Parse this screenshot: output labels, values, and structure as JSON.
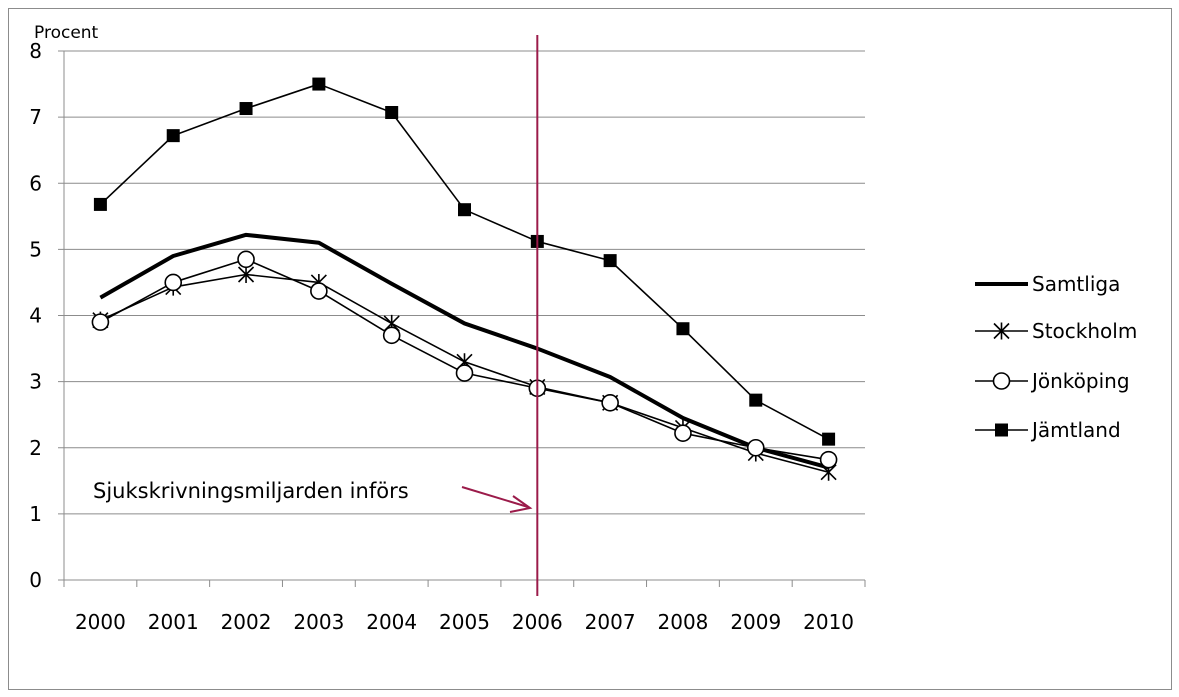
{
  "chart_data": {
    "type": "line",
    "ylabel": "Procent",
    "ylim": [
      0,
      8
    ],
    "yticks": [
      "0",
      "1",
      "2",
      "3",
      "4",
      "5",
      "6",
      "7",
      "8"
    ],
    "categories": [
      "2000",
      "2001",
      "2002",
      "2003",
      "2004",
      "2005",
      "2006",
      "2007",
      "2008",
      "2009",
      "2010"
    ],
    "grid": "horizontal",
    "legend_position": "right",
    "series": [
      {
        "name": "Samtliga",
        "marker": "none",
        "values": [
          4.27,
          4.9,
          5.22,
          5.1,
          4.48,
          3.88,
          3.5,
          3.07,
          2.45,
          2.0,
          1.7
        ]
      },
      {
        "name": "Stockholm",
        "marker": "star",
        "values": [
          3.93,
          4.43,
          4.62,
          4.5,
          3.88,
          3.3,
          2.92,
          2.68,
          2.3,
          1.92,
          1.63
        ]
      },
      {
        "name": "Jönköping",
        "marker": "circle",
        "values": [
          3.9,
          4.5,
          4.85,
          4.37,
          3.7,
          3.13,
          2.9,
          2.68,
          2.22,
          2.0,
          1.82
        ]
      },
      {
        "name": "Jämtland",
        "marker": "square",
        "values": [
          5.68,
          6.72,
          7.13,
          7.5,
          7.07,
          5.6,
          5.12,
          4.83,
          3.8,
          2.72,
          2.13
        ]
      }
    ],
    "annotation": {
      "text": "Sjukskrivningsmiljarden införs",
      "category": "2006",
      "color": "#9b1b4a"
    }
  }
}
